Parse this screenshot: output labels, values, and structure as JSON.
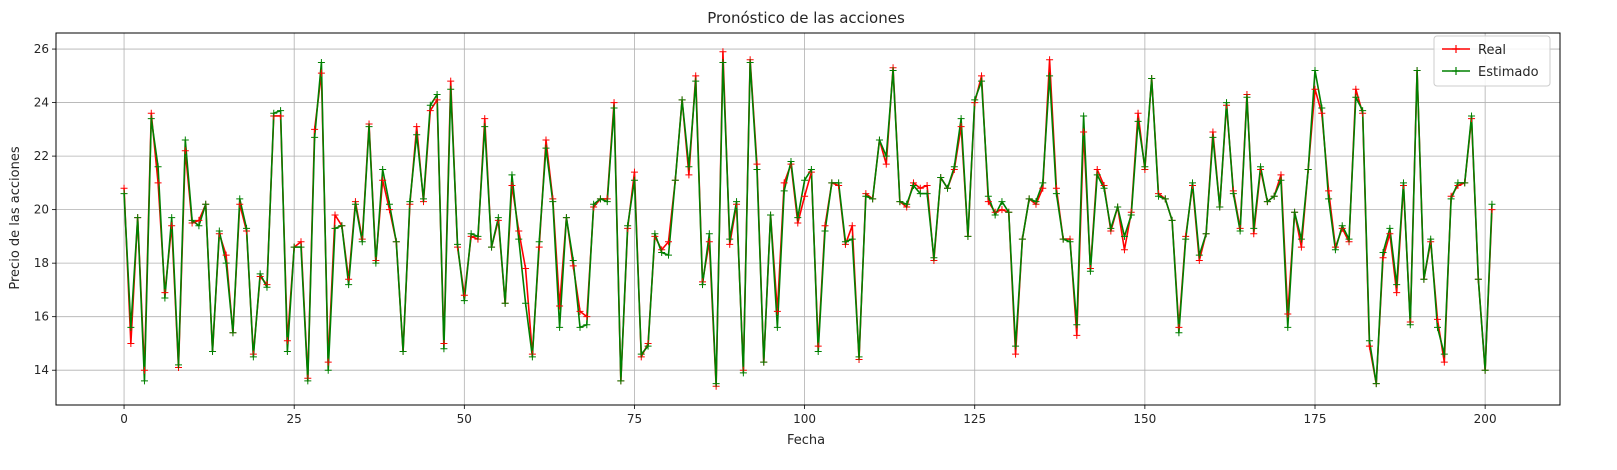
{
  "chart_data": {
    "type": "line",
    "title": "Pronóstico de las acciones",
    "xlabel": "Fecha",
    "ylabel": "Precio de las acciones",
    "xlim": [
      -10,
      211
    ],
    "ylim": [
      12.7,
      26.6
    ],
    "xticks": [
      0,
      25,
      50,
      75,
      100,
      125,
      150,
      175,
      200
    ],
    "yticks": [
      14,
      16,
      18,
      20,
      22,
      24,
      26
    ],
    "grid": true,
    "legend_position": "top-right",
    "marker": "+",
    "series": [
      {
        "name": "Real",
        "color": "#ff0000",
        "values": [
          20.8,
          15.0,
          19.7,
          14.0,
          23.6,
          21.0,
          16.9,
          19.4,
          14.1,
          22.2,
          19.5,
          19.6,
          20.2,
          14.7,
          19.1,
          18.3,
          15.4,
          20.2,
          19.2,
          14.6,
          17.5,
          17.2,
          23.5,
          23.5,
          15.1,
          18.6,
          18.8,
          13.7,
          23.0,
          25.1,
          14.3,
          19.8,
          19.4,
          17.4,
          20.3,
          18.9,
          23.2,
          18.1,
          21.1,
          20.0,
          18.8,
          14.7,
          20.2,
          23.1,
          20.3,
          23.7,
          24.1,
          15.0,
          24.8,
          18.6,
          16.8,
          19.0,
          18.9,
          23.4,
          18.6,
          19.6,
          16.5,
          20.9,
          19.2,
          17.8,
          14.6,
          18.6,
          22.6,
          20.4,
          16.4,
          19.7,
          17.9,
          16.2,
          16.0,
          20.1,
          20.4,
          20.4,
          24.0,
          13.6,
          19.3,
          21.4,
          14.5,
          15.0,
          19.0,
          18.5,
          18.8,
          21.1,
          24.1,
          21.3,
          25.0,
          17.3,
          18.8,
          13.4,
          25.9,
          18.7,
          20.2,
          14.0,
          25.6,
          21.7,
          14.3,
          19.8,
          16.2,
          21.0,
          21.7,
          19.5,
          20.5,
          21.4,
          14.9,
          19.4,
          21.0,
          20.9,
          18.7,
          19.4,
          14.4,
          20.6,
          20.4,
          22.6,
          21.7,
          25.3,
          20.3,
          20.1,
          21.0,
          20.8,
          20.9,
          18.1,
          21.2,
          20.8,
          21.5,
          23.1,
          19.0,
          24.0,
          25.0,
          20.3,
          19.9,
          20.0,
          19.9,
          14.6,
          18.9,
          20.4,
          20.2,
          20.8,
          25.6,
          20.8,
          18.9,
          18.9,
          15.3,
          22.9,
          17.8,
          21.5,
          20.9,
          19.2,
          20.1,
          18.5,
          19.9,
          23.6,
          21.5,
          24.9,
          20.6,
          20.4,
          19.6,
          15.6,
          19.0,
          20.9,
          18.1,
          19.1,
          22.9,
          20.1,
          23.9,
          20.7,
          19.3,
          24.3,
          19.1,
          21.5,
          20.3,
          20.5,
          21.3,
          16.1,
          19.9,
          18.6,
          21.5,
          24.5,
          23.6,
          20.7,
          18.6,
          19.3,
          18.8,
          24.5,
          23.6,
          14.9,
          13.5,
          18.2,
          19.1,
          16.9,
          20.9,
          15.8,
          25.2,
          17.4,
          18.8,
          15.9,
          14.3,
          20.5,
          20.9,
          21.0,
          23.4,
          17.4,
          14.0,
          20.0
        ]
      },
      {
        "name": "Estimado",
        "color": "#008000",
        "values": [
          20.6,
          15.6,
          19.7,
          13.6,
          23.4,
          21.6,
          16.7,
          19.7,
          14.2,
          22.6,
          19.6,
          19.4,
          20.2,
          14.7,
          19.2,
          18.0,
          15.4,
          20.4,
          19.3,
          14.5,
          17.6,
          17.1,
          23.6,
          23.7,
          14.7,
          18.6,
          18.6,
          13.6,
          22.7,
          25.5,
          14.0,
          19.3,
          19.4,
          17.2,
          20.2,
          18.8,
          23.1,
          18.0,
          21.5,
          20.2,
          18.8,
          14.7,
          20.3,
          22.8,
          20.4,
          23.9,
          24.3,
          14.8,
          24.5,
          18.7,
          16.6,
          19.1,
          19.0,
          23.1,
          18.6,
          19.7,
          16.5,
          21.3,
          18.9,
          16.5,
          14.5,
          18.8,
          22.3,
          20.3,
          15.6,
          19.7,
          18.1,
          15.6,
          15.7,
          20.2,
          20.4,
          20.3,
          23.8,
          13.6,
          19.4,
          21.1,
          14.6,
          14.9,
          19.1,
          18.4,
          18.3,
          21.1,
          24.1,
          21.6,
          24.8,
          17.2,
          19.1,
          13.5,
          25.5,
          18.9,
          20.3,
          13.9,
          25.5,
          21.5,
          14.3,
          19.8,
          15.6,
          20.7,
          21.8,
          19.7,
          21.1,
          21.5,
          14.7,
          19.2,
          21.0,
          21.0,
          18.8,
          18.9,
          14.5,
          20.5,
          20.4,
          22.6,
          22.0,
          25.2,
          20.3,
          20.2,
          20.9,
          20.6,
          20.6,
          18.2,
          21.2,
          20.8,
          21.6,
          23.4,
          19.0,
          24.1,
          24.8,
          20.5,
          19.8,
          20.3,
          19.9,
          14.9,
          18.9,
          20.4,
          20.3,
          21.0,
          25.0,
          20.6,
          18.9,
          18.8,
          15.7,
          23.5,
          17.7,
          21.3,
          20.8,
          19.3,
          20.1,
          19.0,
          19.8,
          23.3,
          21.6,
          24.9,
          20.5,
          20.4,
          19.6,
          15.4,
          18.9,
          21.0,
          18.3,
          19.1,
          22.7,
          20.1,
          24.0,
          20.6,
          19.2,
          24.2,
          19.3,
          21.6,
          20.3,
          20.5,
          21.1,
          15.6,
          19.9,
          18.9,
          21.5,
          25.2,
          23.8,
          20.4,
          18.5,
          19.4,
          18.9,
          24.2,
          23.7,
          15.1,
          13.5,
          18.4,
          19.3,
          17.2,
          21.0,
          15.7,
          25.2,
          17.4,
          18.9,
          15.6,
          14.6,
          20.4,
          21.0,
          21.0,
          23.5,
          17.4,
          14.0,
          20.2
        ]
      }
    ]
  }
}
